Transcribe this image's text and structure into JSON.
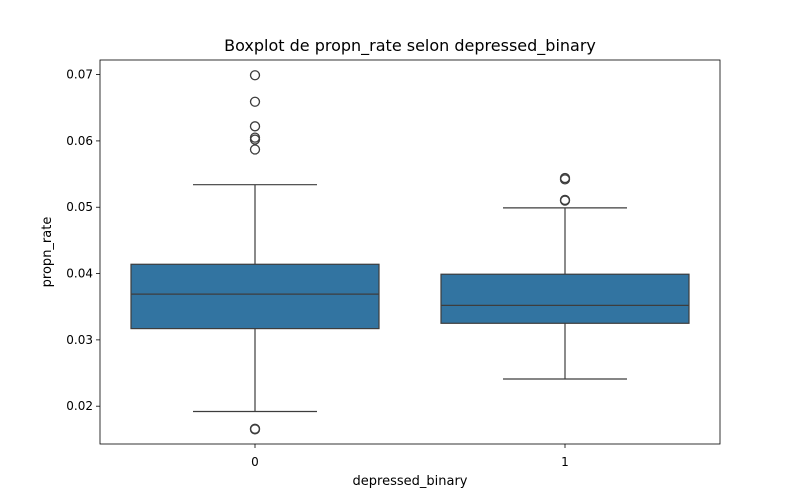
{
  "chart_data": {
    "type": "boxplot",
    "title": "Boxplot de propn_rate selon depressed_binary",
    "xlabel": "depressed_binary",
    "ylabel": "propn_rate",
    "categories": [
      "0",
      "1"
    ],
    "ylim": [
      0.0143,
      0.0722
    ],
    "yticks": [
      0.02,
      0.03,
      0.04,
      0.05,
      0.06,
      0.07
    ],
    "ytick_labels": [
      "0.02",
      "0.03",
      "0.04",
      "0.05",
      "0.06",
      "0.07"
    ],
    "grid": false,
    "box_color": "#3274a1",
    "line_color": "#3d3d3d",
    "boxes": [
      {
        "category": "0",
        "whisker_low": 0.0192,
        "q1": 0.0317,
        "median": 0.0369,
        "q3": 0.0414,
        "whisker_high": 0.0534,
        "outliers": [
          0.0699,
          0.0659,
          0.0622,
          0.0605,
          0.0602,
          0.0587,
          0.0166,
          0.0165
        ]
      },
      {
        "category": "1",
        "whisker_low": 0.0241,
        "q1": 0.0325,
        "median": 0.0352,
        "q3": 0.0399,
        "whisker_high": 0.0499,
        "outliers": [
          0.0544,
          0.0542,
          0.0511,
          0.051
        ]
      }
    ]
  }
}
